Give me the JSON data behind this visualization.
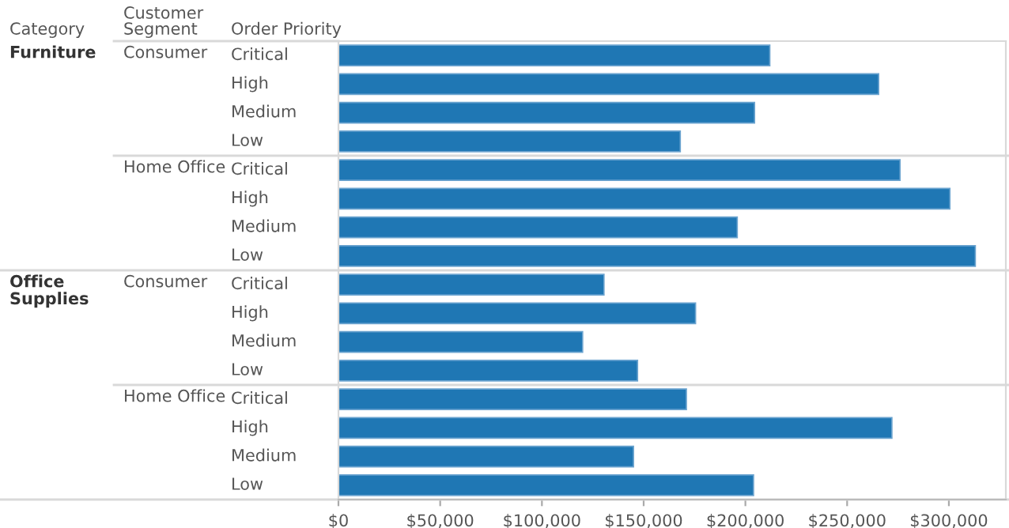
{
  "chart_data": {
    "type": "bar",
    "orientation": "horizontal",
    "categories": [
      "Critical",
      "High",
      "Medium",
      "Low",
      "Critical",
      "High",
      "Medium",
      "Low",
      "Critical",
      "High",
      "Medium",
      "Low",
      "Critical",
      "High",
      "Medium",
      "Low"
    ],
    "values": [
      212000,
      265500,
      204500,
      168000,
      276000,
      300500,
      196000,
      313000,
      130500,
      175500,
      120000,
      147000,
      171000,
      272000,
      145000,
      204000
    ],
    "color": "#1f77b4",
    "xlim": [
      0,
      328000
    ],
    "xticks": [
      {
        "value": 0,
        "label": "$0"
      },
      {
        "value": 50000,
        "label": "$50,000"
      },
      {
        "value": 100000,
        "label": "$100,000"
      },
      {
        "value": 150000,
        "label": "$150,000"
      },
      {
        "value": 200000,
        "label": "$200,000"
      },
      {
        "value": 250000,
        "label": "$250,000"
      },
      {
        "value": 300000,
        "label": "$300,000"
      }
    ],
    "grid": false,
    "annotations": [
      "Category",
      "Customer\nSegment",
      "Order Priority",
      "Furniture",
      "Consumer",
      "Home Office",
      "Office\nSupplies",
      "Consumer",
      "Home Office"
    ]
  }
}
